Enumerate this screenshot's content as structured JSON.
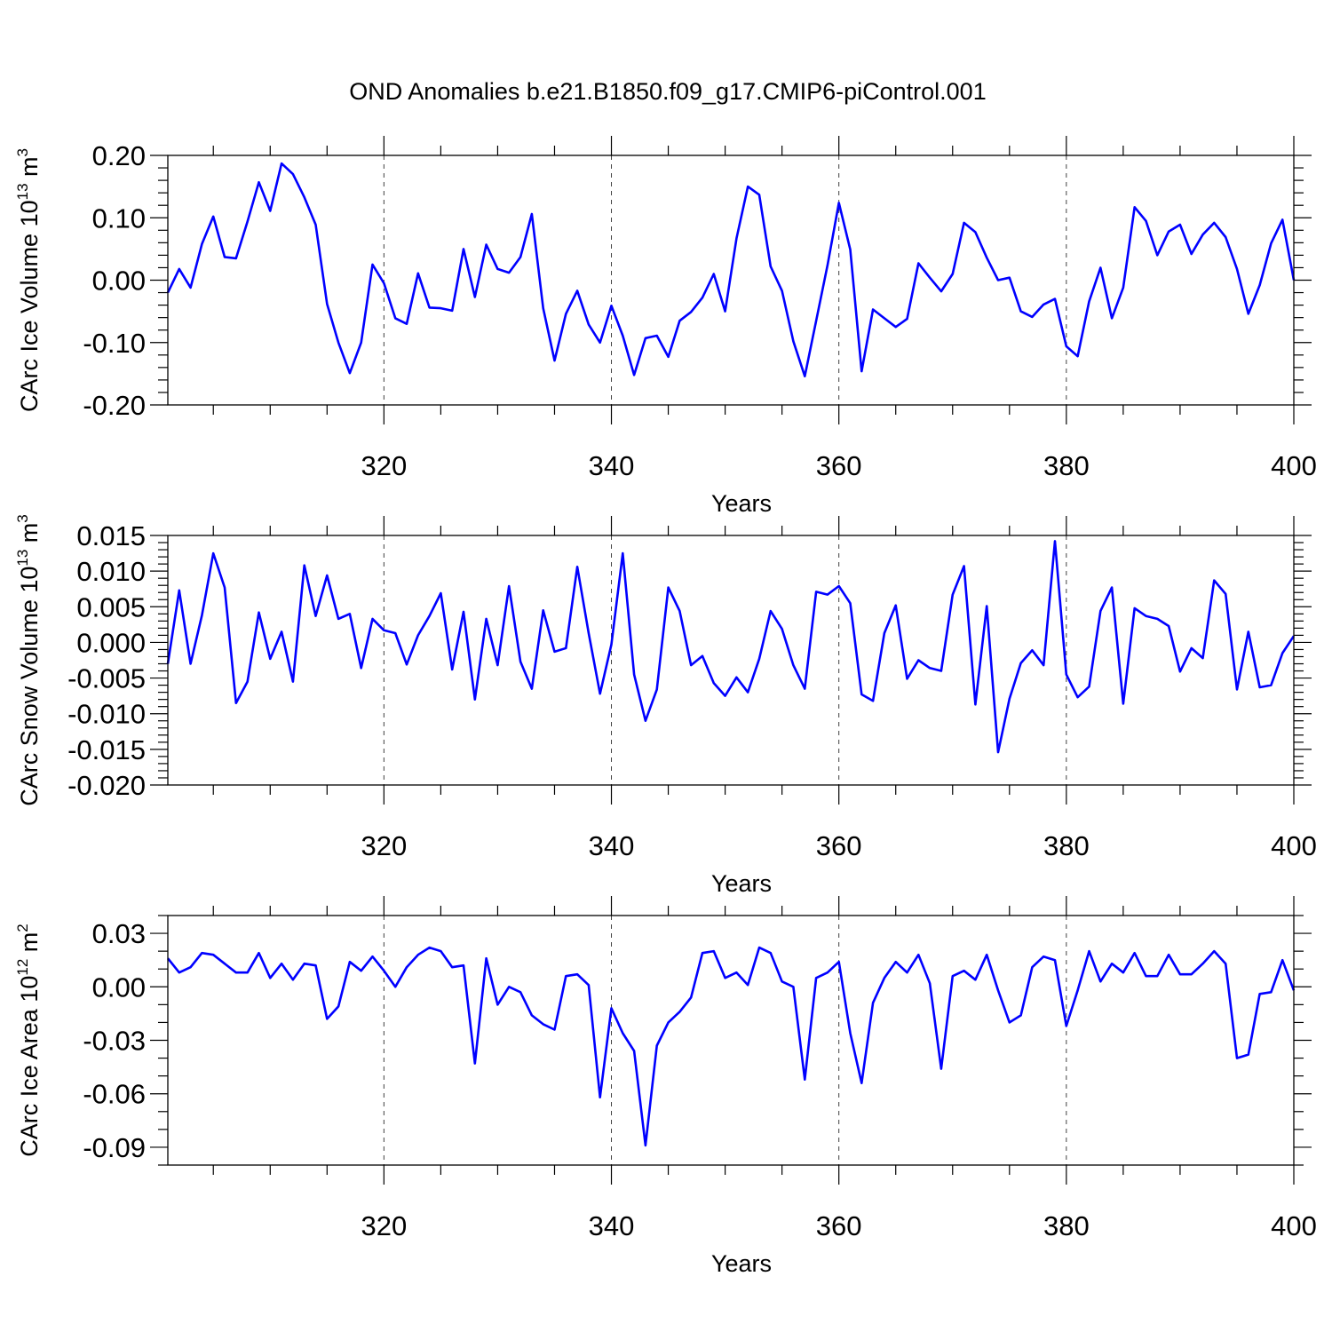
{
  "title": "OND Anomalies b.e21.B1850.f09_g17.CMIP6-piControl.001",
  "colors": {
    "line": "#0000ff",
    "axes": "#000000"
  },
  "chart_data": [
    {
      "type": "line",
      "ylabel": {
        "main": "CArc Ice Volume 10",
        "sup": "13",
        "unit": " m",
        "unit_sup": "3"
      },
      "xlabel": "Years",
      "xlim": [
        301,
        400
      ],
      "ylim": [
        -0.2,
        0.2
      ],
      "xticks": [
        320,
        340,
        360,
        380,
        400
      ],
      "xtick_labels": [
        "320",
        "340",
        "360",
        "380",
        "400"
      ],
      "yticks": [
        -0.2,
        -0.1,
        0.0,
        0.1,
        0.2
      ],
      "ytick_labels": [
        "-0.20",
        "-0.10",
        "0.00",
        "0.10",
        "0.20"
      ],
      "yminor": [
        -0.18,
        -0.16,
        -0.14,
        -0.12,
        -0.08,
        -0.06,
        -0.04,
        -0.02,
        0.02,
        0.04,
        0.06,
        0.08,
        0.12,
        0.14,
        0.16,
        0.18
      ],
      "grid": "dashed vertical at major x ticks",
      "x_start": 301,
      "values": [
        -0.02,
        0.018,
        -0.012,
        0.058,
        0.102,
        0.037,
        0.035,
        0.094,
        0.157,
        0.111,
        0.187,
        0.17,
        0.133,
        0.089,
        -0.038,
        -0.1,
        -0.149,
        -0.1,
        0.025,
        -0.005,
        -0.061,
        -0.07,
        0.011,
        -0.044,
        -0.045,
        -0.049,
        0.05,
        -0.027,
        0.057,
        0.018,
        0.012,
        0.037,
        0.106,
        -0.045,
        -0.129,
        -0.054,
        -0.017,
        -0.071,
        -0.1,
        -0.041,
        -0.089,
        -0.152,
        -0.093,
        -0.089,
        -0.123,
        -0.065,
        -0.051,
        -0.028,
        0.01,
        -0.05,
        0.067,
        0.15,
        0.137,
        0.022,
        -0.017,
        -0.098,
        -0.154,
        -0.065,
        0.024,
        0.124,
        0.049,
        -0.146,
        -0.047,
        -0.061,
        -0.075,
        -0.062,
        0.027,
        0.004,
        -0.018,
        0.01,
        0.092,
        0.077,
        0.036,
        0.0,
        0.004,
        -0.05,
        -0.059,
        -0.039,
        -0.03,
        -0.106,
        -0.122,
        -0.034,
        0.02,
        -0.061,
        -0.012,
        0.117,
        0.095,
        0.04,
        0.078,
        0.089,
        0.042,
        0.073,
        0.092,
        0.069,
        0.018,
        -0.054,
        -0.008,
        0.059,
        0.097,
        0.0
      ]
    },
    {
      "type": "line",
      "ylabel": {
        "main": "CArc Snow Volume 10",
        "sup": "13",
        "unit": " m",
        "unit_sup": "3"
      },
      "xlabel": "Years",
      "xlim": [
        301,
        400
      ],
      "ylim": [
        -0.02,
        0.015
      ],
      "xticks": [
        320,
        340,
        360,
        380,
        400
      ],
      "xtick_labels": [
        "320",
        "340",
        "360",
        "380",
        "400"
      ],
      "yticks": [
        -0.02,
        -0.015,
        -0.01,
        -0.005,
        0.0,
        0.005,
        0.01,
        0.015
      ],
      "ytick_labels": [
        "-0.020",
        "-0.015",
        "-0.010",
        "-0.005",
        "0.000",
        "0.005",
        "0.010",
        "0.015"
      ],
      "yminor": [
        -0.019,
        -0.018,
        -0.017,
        -0.016,
        -0.014,
        -0.013,
        -0.012,
        -0.011,
        -0.009,
        -0.008,
        -0.007,
        -0.006,
        -0.004,
        -0.003,
        -0.002,
        -0.001,
        0.001,
        0.002,
        0.003,
        0.004,
        0.006,
        0.007,
        0.008,
        0.009,
        0.011,
        0.012,
        0.013,
        0.014
      ],
      "grid": "dashed vertical at major x ticks",
      "x_start": 301,
      "values": [
        -0.003,
        0.0073,
        -0.003,
        0.0038,
        0.0125,
        0.0077,
        -0.0085,
        -0.0055,
        0.0042,
        -0.0023,
        0.0015,
        -0.0055,
        0.0108,
        0.0037,
        0.0094,
        0.0033,
        0.004,
        -0.0036,
        0.0033,
        0.0017,
        0.0013,
        -0.0031,
        0.001,
        0.0037,
        0.0069,
        -0.0038,
        0.0043,
        -0.008,
        0.0033,
        -0.0032,
        0.0079,
        -0.0027,
        -0.0065,
        0.0045,
        -0.0013,
        -0.0008,
        0.0106,
        0.0013,
        -0.0072,
        -0.0003,
        0.0125,
        -0.0045,
        -0.011,
        -0.0066,
        0.0077,
        0.0044,
        -0.0032,
        -0.0019,
        -0.0057,
        -0.0075,
        -0.0049,
        -0.007,
        -0.0023,
        0.0044,
        0.0019,
        -0.0032,
        -0.0065,
        0.0071,
        0.0067,
        0.0079,
        0.0055,
        -0.0073,
        -0.0082,
        0.0013,
        0.0052,
        -0.0051,
        -0.0025,
        -0.0036,
        -0.004,
        0.0067,
        0.0107,
        -0.0087,
        0.0051,
        -0.0154,
        -0.0079,
        -0.0029,
        -0.0011,
        -0.0032,
        0.0142,
        -0.0045,
        -0.0077,
        -0.0062,
        0.0044,
        0.0077,
        -0.0086,
        0.0048,
        0.0037,
        0.0033,
        0.0023,
        -0.0041,
        -0.0008,
        -0.0022,
        0.0087,
        0.0068,
        -0.0066,
        0.0015,
        -0.0063,
        -0.006,
        -0.0015,
        0.0009
      ]
    },
    {
      "type": "line",
      "ylabel": {
        "main": "CArc Ice Area 10",
        "sup": "12",
        "unit": " m",
        "unit_sup": "2"
      },
      "xlabel": "Years",
      "xlim": [
        301,
        400
      ],
      "ylim": [
        -0.1,
        0.04
      ],
      "xticks": [
        320,
        340,
        360,
        380,
        400
      ],
      "xtick_labels": [
        "320",
        "340",
        "360",
        "380",
        "400"
      ],
      "yticks": [
        -0.09,
        -0.06,
        -0.03,
        0.0,
        0.03
      ],
      "ytick_labels": [
        "-0.09",
        "-0.06",
        "-0.03",
        "0.00",
        "0.03"
      ],
      "yminor": [
        -0.1,
        -0.08,
        -0.07,
        -0.05,
        -0.04,
        -0.02,
        -0.01,
        0.01,
        0.02,
        0.04
      ],
      "grid": "dashed vertical at major x ticks",
      "x_start": 301,
      "values": [
        0.016,
        0.008,
        0.011,
        0.019,
        0.018,
        0.013,
        0.008,
        0.008,
        0.019,
        0.005,
        0.013,
        0.004,
        0.013,
        0.012,
        -0.018,
        -0.011,
        0.014,
        0.009,
        0.017,
        0.009,
        0.0,
        0.011,
        0.018,
        0.022,
        0.02,
        0.011,
        0.012,
        -0.043,
        0.016,
        -0.01,
        0.0,
        -0.003,
        -0.016,
        -0.021,
        -0.024,
        0.006,
        0.007,
        0.001,
        -0.062,
        -0.012,
        -0.026,
        -0.036,
        -0.089,
        -0.033,
        -0.02,
        -0.014,
        -0.006,
        0.019,
        0.02,
        0.005,
        0.008,
        0.001,
        0.022,
        0.019,
        0.003,
        0.0,
        -0.052,
        0.005,
        0.008,
        0.014,
        -0.026,
        -0.054,
        -0.009,
        0.005,
        0.014,
        0.008,
        0.018,
        0.002,
        -0.046,
        0.006,
        0.009,
        0.004,
        0.018,
        -0.002,
        -0.02,
        -0.016,
        0.011,
        0.017,
        0.015,
        -0.022,
        -0.002,
        0.02,
        0.003,
        0.013,
        0.008,
        0.019,
        0.006,
        0.006,
        0.018,
        0.007,
        0.007,
        0.013,
        0.02,
        0.013,
        -0.04,
        -0.038,
        -0.004,
        -0.003,
        0.015,
        -0.002
      ]
    }
  ]
}
